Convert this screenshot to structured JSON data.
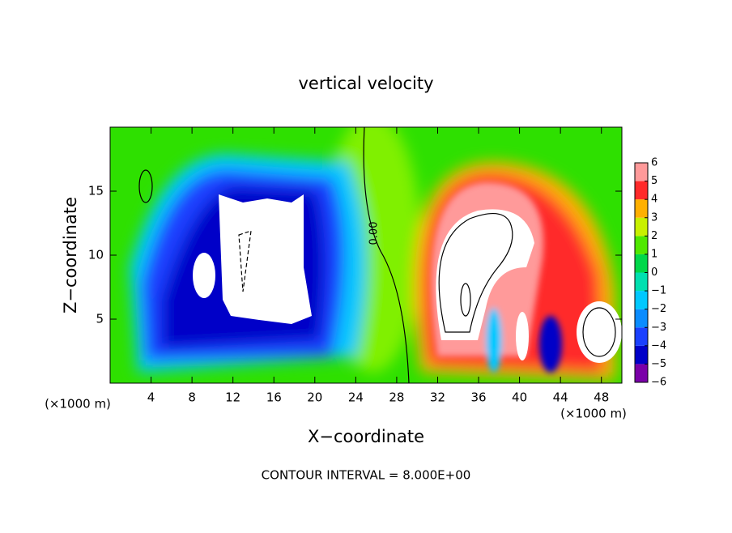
{
  "chart_data": {
    "type": "contour",
    "title": "vertical velocity",
    "x_label": "X−coordinate",
    "y_label": "Z−coordinate",
    "x_unit_label": "(×1000 m)",
    "y_unit_label": "(×1000 m)",
    "footer": "CONTOUR INTERVAL = 8.000E+00",
    "contour_label": "0.00",
    "xlim": [
      0,
      50
    ],
    "xticks": [
      4,
      8,
      12,
      16,
      20,
      24,
      28,
      32,
      36,
      40,
      44,
      48
    ],
    "ylim": [
      0,
      20
    ],
    "yticks": [
      5,
      10,
      15
    ],
    "colorbar": {
      "ticks": [
        {
          "value": -6,
          "label": "−6"
        },
        {
          "value": -5,
          "label": "−5"
        },
        {
          "value": -4,
          "label": "−4"
        },
        {
          "value": -3,
          "label": "−3"
        },
        {
          "value": -2,
          "label": "−2"
        },
        {
          "value": -1,
          "label": "−1"
        },
        0,
        1,
        2,
        3,
        4,
        5,
        6
      ],
      "colors": [
        "#7a00a8",
        "#0000c8",
        "#1a40ff",
        "#0a8cff",
        "#00c8ff",
        "#00e0b0",
        "#00d84a",
        "#50e800",
        "#c8f000",
        "#ffb000",
        "#ff2a2a",
        "#ff9a9a"
      ]
    }
  }
}
